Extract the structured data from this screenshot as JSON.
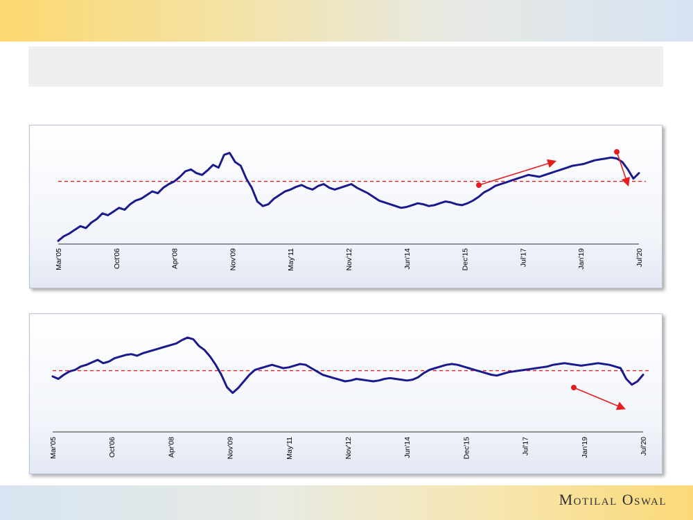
{
  "brand": {
    "name": "Motilal Oswal"
  },
  "colors": {
    "line": "#1a1a8c",
    "reference": "#e41e1e",
    "annotation": "#e41e1e"
  },
  "chart_data": [
    {
      "type": "line",
      "title": "",
      "xlabel": "",
      "ylabel": "",
      "x_tick_labels": [
        "Mar'05",
        "Oct'06",
        "Apr'08",
        "Nov'09",
        "May'11",
        "Nov'12",
        "Jun'14",
        "Dec'15",
        "Jul'17",
        "Jan'19",
        "Jul'20"
      ],
      "grid": false,
      "legend": "none",
      "ylim": [
        0,
        100
      ],
      "series": [
        {
          "values": [
            2,
            7,
            10,
            14,
            18,
            16,
            22,
            26,
            32,
            30,
            34,
            38,
            36,
            42,
            46,
            48,
            52,
            56,
            54,
            60,
            64,
            67,
            72,
            78,
            80,
            76,
            74,
            79,
            85,
            82,
            96,
            98,
            88,
            84,
            70,
            60,
            45,
            40,
            42,
            48,
            52,
            56,
            58,
            61,
            63,
            60,
            58,
            62,
            64,
            60,
            58,
            60,
            62,
            64,
            60,
            57,
            54,
            50,
            46,
            44,
            42,
            40,
            38,
            39,
            41,
            43,
            42,
            40,
            41,
            43,
            45,
            44,
            42,
            41,
            43,
            46,
            50,
            55,
            58,
            62,
            64,
            66,
            68,
            70,
            72,
            74,
            73,
            72,
            74,
            76,
            78,
            80,
            82,
            84,
            85,
            86,
            88,
            90,
            91,
            92,
            93,
            92,
            88,
            80,
            70,
            76
          ]
        },
        {
          "reference_value": 67
        }
      ],
      "annotations": [
        {
          "type": "arrow",
          "direction": "up",
          "label": ""
        },
        {
          "type": "arrow",
          "direction": "down",
          "label": ""
        }
      ]
    },
    {
      "type": "line",
      "title": "",
      "xlabel": "",
      "ylabel": "",
      "x_tick_labels": [
        "Mar'05",
        "Oct'06",
        "Apr'08",
        "Nov'09",
        "May'11",
        "Nov'12",
        "Jun'14",
        "Dec'15",
        "Jul'17",
        "Jan'19",
        "Jul'20"
      ],
      "grid": false,
      "legend": "none",
      "ylim": [
        0,
        100
      ],
      "series": [
        {
          "values": [
            48,
            45,
            50,
            54,
            56,
            60,
            62,
            65,
            68,
            64,
            66,
            70,
            72,
            74,
            75,
            73,
            76,
            78,
            80,
            82,
            84,
            86,
            88,
            92,
            95,
            93,
            85,
            80,
            72,
            62,
            50,
            35,
            28,
            34,
            42,
            50,
            56,
            58,
            60,
            62,
            60,
            58,
            59,
            61,
            63,
            62,
            58,
            54,
            50,
            48,
            46,
            44,
            42,
            43,
            45,
            44,
            43,
            42,
            43,
            45,
            46,
            45,
            44,
            43,
            44,
            47,
            52,
            56,
            58,
            60,
            62,
            63,
            62,
            60,
            58,
            56,
            54,
            52,
            50,
            49,
            51,
            53,
            54,
            55,
            56,
            57,
            58,
            59,
            60,
            62,
            63,
            64,
            63,
            62,
            61,
            62,
            63,
            64,
            63,
            62,
            60,
            58,
            45,
            38,
            42,
            50
          ]
        },
        {
          "reference_value": 55
        }
      ],
      "annotations": [
        {
          "type": "arrow",
          "direction": "down",
          "label": ""
        }
      ]
    }
  ]
}
